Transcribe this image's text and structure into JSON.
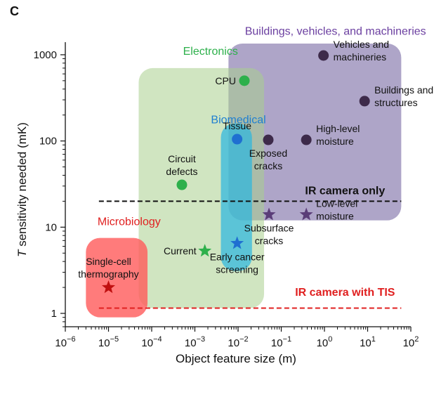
{
  "panel_letter": "C",
  "chart_data": {
    "type": "scatter",
    "title": "",
    "xlabel": "Object feature size (m)",
    "ylabel": "T sensitivity needed (mK)",
    "xscale": "log",
    "yscale": "log",
    "xlim": [
      1e-06,
      100
    ],
    "ylim": [
      0.7,
      1400
    ],
    "x_ticks": [
      {
        "value": 1e-06,
        "base": "10",
        "exp": "−6"
      },
      {
        "value": 1e-05,
        "base": "10",
        "exp": "−5"
      },
      {
        "value": 0.0001,
        "base": "10",
        "exp": "−4"
      },
      {
        "value": 0.001,
        "base": "10",
        "exp": "−3"
      },
      {
        "value": 0.01,
        "base": "10",
        "exp": "−2"
      },
      {
        "value": 0.1,
        "base": "10",
        "exp": "−1"
      },
      {
        "value": 1,
        "base": "10",
        "exp": "0"
      },
      {
        "value": 10,
        "base": "10",
        "exp": "1"
      },
      {
        "value": 100,
        "base": "10",
        "exp": "2"
      }
    ],
    "y_ticks": [
      {
        "value": 1,
        "label": "1"
      },
      {
        "value": 10,
        "label": "10"
      },
      {
        "value": 100,
        "label": "100"
      },
      {
        "value": 1000,
        "label": "1000"
      }
    ],
    "regions": [
      {
        "name": "Buildings, vehicles, and machineries",
        "color": "#6b5b9a",
        "opacity": 0.55,
        "x": [
          0.006,
          60
        ],
        "y": [
          12,
          1350
        ],
        "label_x": 1.8,
        "label_y": 1700
      },
      {
        "name": "Electronics",
        "color": "#a9cf8e",
        "opacity": 0.55,
        "x": [
          5e-05,
          0.04
        ],
        "y": [
          1.15,
          700
        ],
        "label_x": 0.0023,
        "label_y": 1000
      },
      {
        "name": "Biomedical",
        "color": "#2ab6e0",
        "opacity": 0.7,
        "x": [
          0.004,
          0.021
        ],
        "y": [
          3.1,
          160
        ],
        "label_x": 0.0102,
        "label_y": 160
      },
      {
        "name": "Microbiology",
        "color": "#ff5a5a",
        "opacity": 0.8,
        "x": [
          3e-06,
          8e-05
        ],
        "y": [
          0.9,
          7.5
        ],
        "label_x": 3e-05,
        "label_y": 10.5
      }
    ],
    "thresholds": [
      {
        "name": "IR camera only",
        "y": 20,
        "x": [
          6e-06,
          60
        ],
        "color": "#111111",
        "label_x": 3.0,
        "label_y": 24
      },
      {
        "name": "IR camera with TIS",
        "y": 1.15,
        "x": [
          6e-06,
          60
        ],
        "color": "#e02020",
        "label_x": 3.0,
        "label_y": 1.6
      }
    ],
    "points": [
      {
        "label": "CPU",
        "x": 0.014,
        "y": 500,
        "marker": "circle",
        "color": "#2db04b",
        "label_pos": "left"
      },
      {
        "label": "Circuit defects",
        "x": 0.0005,
        "y": 31,
        "marker": "circle",
        "color": "#2db04b",
        "label_pos": "above"
      },
      {
        "label": "Current",
        "x": 0.0017,
        "y": 5.3,
        "marker": "star",
        "color": "#2db04b",
        "label_pos": "left"
      },
      {
        "label": "Tissue",
        "x": 0.0095,
        "y": 105,
        "marker": "circle",
        "color": "#1f6fd1",
        "label_pos": "above"
      },
      {
        "label": "Early cancer screening",
        "x": 0.0095,
        "y": 6.5,
        "marker": "star",
        "color": "#1f6fd1",
        "label_pos": "below"
      },
      {
        "label": "Exposed cracks",
        "x": 0.05,
        "y": 103,
        "marker": "circle",
        "color": "#3d2a4a",
        "label_pos": "below"
      },
      {
        "label": "High-level moisture",
        "x": 0.38,
        "y": 103,
        "marker": "circle",
        "color": "#3d2a4a",
        "label_pos": "right"
      },
      {
        "label": "Vehicles and machineries",
        "x": 0.95,
        "y": 980,
        "marker": "circle",
        "color": "#3d2a4a",
        "label_pos": "right"
      },
      {
        "label": "Buildings and structures",
        "x": 8.5,
        "y": 290,
        "marker": "circle",
        "color": "#3d2a4a",
        "label_pos": "right"
      },
      {
        "label": "Subsurface cracks",
        "x": 0.052,
        "y": 14,
        "marker": "star",
        "color": "#5a3d78",
        "label_pos": "below"
      },
      {
        "label": "Low-level moisture",
        "x": 0.38,
        "y": 14,
        "marker": "star",
        "color": "#5a3d78",
        "label_pos": "right"
      },
      {
        "label": "Single-cell thermography",
        "x": 1e-05,
        "y": 2.0,
        "marker": "star",
        "color": "#c01010",
        "label_pos": "above"
      }
    ],
    "grid": false,
    "legend": "none"
  }
}
